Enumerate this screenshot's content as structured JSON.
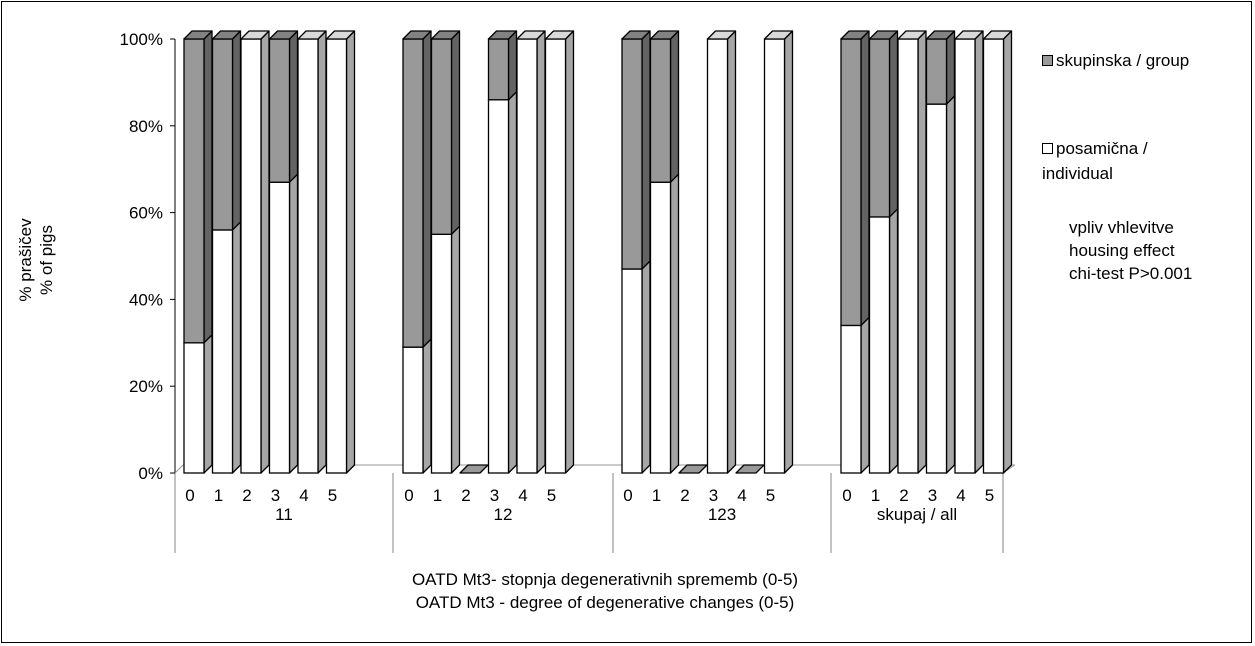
{
  "chart_data": {
    "type": "bar",
    "stacked": true,
    "percent_stacked": true,
    "groups": [
      "11",
      "12",
      "123",
      "skupaj / all"
    ],
    "categories": [
      "0",
      "1",
      "2",
      "3",
      "4",
      "5"
    ],
    "series": [
      {
        "name": "skupinska / group",
        "color": "#999999",
        "values": [
          [
            70,
            44,
            0,
            33,
            0,
            0
          ],
          [
            71,
            45,
            0,
            14,
            0,
            0
          ],
          [
            53,
            33,
            0,
            0,
            0,
            0
          ],
          [
            66,
            41,
            0,
            15,
            0,
            0
          ]
        ]
      },
      {
        "name": "posamična / individual",
        "color": "#ffffff",
        "values": [
          [
            30,
            56,
            100,
            67,
            100,
            100
          ],
          [
            29,
            55,
            0,
            86,
            100,
            100
          ],
          [
            47,
            67,
            0,
            100,
            0,
            100
          ],
          [
            34,
            59,
            100,
            85,
            100,
            100
          ]
        ]
      }
    ],
    "yticks": [
      "0%",
      "20%",
      "40%",
      "60%",
      "80%",
      "100%"
    ],
    "ylim": [
      0,
      100
    ],
    "ylabel_lines": [
      "% prašičev",
      "% of pigs"
    ],
    "xlabel_lines": [
      "OATD Mt3- stopnja degenerativnih sprememb (0-5)",
      "OATD Mt3 - degree of degenerative changes (0-5)"
    ],
    "legend_position": "right",
    "annotation_lines": [
      "vpliv vhlevitve",
      "housing effect",
      "chi-test P>0.001"
    ],
    "grid": false
  },
  "legend": {
    "group_line1": "skupinska / group",
    "individual_line1": "posamična /",
    "individual_line2": "individual"
  }
}
